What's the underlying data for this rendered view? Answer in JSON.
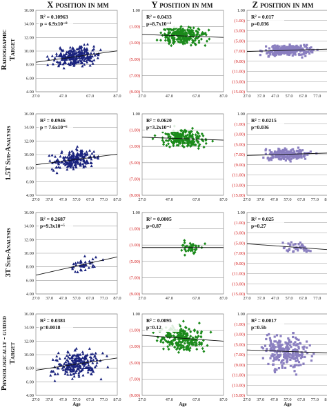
{
  "columns": [
    {
      "title": "X position in mm"
    },
    {
      "title": "Y position in mm"
    },
    {
      "title": "Z position in mm"
    }
  ],
  "rows": [
    {
      "title_lines": [
        "Radiographic",
        "Target"
      ]
    },
    {
      "title_lines": [
        "1.5T Sub-Analysis"
      ]
    },
    {
      "title_lines": [
        "3T Sub-Analysis"
      ]
    },
    {
      "title_lines": [
        "Physiologically - guided",
        "Target"
      ]
    }
  ],
  "chart_data": [
    {
      "type": "scatter",
      "row": 0,
      "col": 0,
      "series": [
        {
          "color": "#1a237e",
          "marker": "triangle",
          "n": 240,
          "slope": 0.028,
          "intercept": 9.0,
          "spread": 0.9
        }
      ],
      "yticks": [
        "4.00",
        "6.00",
        "8.00",
        "10.00",
        "12.00",
        "14.00",
        "16.00"
      ],
      "yrange": [
        4,
        16
      ],
      "xticks": [
        "27.0",
        "47.0",
        "67.0",
        "87.0"
      ],
      "xrange": [
        27,
        87
      ],
      "xdata": [
        33,
        80
      ],
      "annotation": {
        "r2": "R² = 0.10963",
        "p": "p = 6.9x10⁻⁸"
      }
    },
    {
      "type": "scatter",
      "row": 0,
      "col": 1,
      "series": [
        {
          "color": "#1b8a1b",
          "marker": "diamond",
          "n": 240,
          "slope": -0.006,
          "intercept": -2.1,
          "spread": 0.75
        }
      ],
      "yticks": [
        "1.00",
        "(1.00)",
        "(3.00)",
        "(5.00)",
        "(7.00)",
        "(9.00)"
      ],
      "yrange": [
        -9,
        1
      ],
      "xticks": [
        "27.0",
        "47.0",
        "67.0",
        "87.0"
      ],
      "xrange": [
        27,
        87
      ],
      "xdata": [
        33,
        80
      ],
      "annotation": {
        "r2": "R² = 0.0433",
        "p": "p=8.7x10⁻⁴"
      }
    },
    {
      "type": "scatter",
      "row": 0,
      "col": 2,
      "series": [
        {
          "color": "#8a7fc0",
          "marker": "square",
          "n": 240,
          "slope": 0.008,
          "intercept": -6.9,
          "spread": 0.8
        }
      ],
      "yticks": [
        "1.00",
        "(1.00)",
        "(3.00)",
        "(5.00)",
        "(7.00)",
        "(9.00)",
        "(11.00)",
        "(13.00)",
        "(15.00)"
      ],
      "yrange": [
        -15,
        1
      ],
      "xticks": [
        "27.0",
        "37.0",
        "47.0",
        "57.0",
        "67.0",
        "77.0"
      ],
      "xrange": [
        27,
        85
      ],
      "xdata": [
        33,
        80
      ],
      "annotation": {
        "r2": "R² = 0.017",
        "p": "p=0.036"
      }
    },
    {
      "type": "scatter",
      "row": 1,
      "col": 0,
      "series": [
        {
          "color": "#1a237e",
          "marker": "triangle",
          "n": 200,
          "slope": 0.026,
          "intercept": 9.1,
          "spread": 0.9
        }
      ],
      "yticks": [
        "4.00",
        "6.00",
        "8.00",
        "10.00",
        "12.00",
        "14.00",
        "16.00"
      ],
      "yrange": [
        4,
        16
      ],
      "xticks": [
        "27.0",
        "37.0",
        "47.0",
        "57.0",
        "67.0",
        "77.0",
        "87.0"
      ],
      "xrange": [
        27,
        87
      ],
      "xdata": [
        33,
        80
      ],
      "annotation": {
        "r2": "R² = 0.0946",
        "p": "p = 7.6x10⁻⁶"
      }
    },
    {
      "type": "scatter",
      "row": 1,
      "col": 1,
      "series": [
        {
          "color": "#1b8a1b",
          "marker": "diamond",
          "n": 200,
          "slope": -0.006,
          "intercept": -2.0,
          "spread": 0.75
        }
      ],
      "yticks": [
        "1.00",
        "(1.00)",
        "(3.00)",
        "(5.00)",
        "(7.00)",
        "(9.00)"
      ],
      "yrange": [
        -9,
        1
      ],
      "xticks": [
        "27.0",
        "47.0",
        "67.0",
        "87.0"
      ],
      "xrange": [
        27,
        87
      ],
      "xdata": [
        33,
        80
      ],
      "annotation": {
        "r2": "R² = 0.0620",
        "p": "p=3.2x10⁻⁴"
      }
    },
    {
      "type": "scatter",
      "row": 1,
      "col": 2,
      "series": [
        {
          "color": "#8a7fc0",
          "marker": "square",
          "n": 200,
          "slope": 0.008,
          "intercept": -7.0,
          "spread": 0.8
        }
      ],
      "yticks": [
        "1.00",
        "(1.00)",
        "(3.00)",
        "(5.00)",
        "(7.00)",
        "(9.00)",
        "(11.00)",
        "(13.00)",
        "(15.00)"
      ],
      "yrange": [
        -15,
        1
      ],
      "xticks": [
        "27.0",
        "37.0",
        "47.0",
        "57.0",
        "67.0",
        "77.0",
        "87.0"
      ],
      "xrange": [
        27,
        87
      ],
      "xdata": [
        33,
        80
      ],
      "annotation": {
        "r2": "R² = 0.0215",
        "p": "p=0.036"
      }
    },
    {
      "type": "scatter",
      "row": 2,
      "col": 0,
      "series": [
        {
          "color": "#1a237e",
          "marker": "triangle",
          "n": 40,
          "slope": 0.045,
          "intercept": 7.8,
          "spread": 0.7
        }
      ],
      "yticks": [
        "4.00",
        "6.00",
        "8.00",
        "10.00",
        "12.00",
        "14.00",
        "16.00"
      ],
      "yrange": [
        4,
        16
      ],
      "xticks": [
        "27.0",
        "37.0",
        "47.0",
        "57.0",
        "67.0",
        "77.0",
        "87.0"
      ],
      "xrange": [
        27,
        87
      ],
      "xdata": [
        48,
        78
      ],
      "annotation": {
        "r2": "R² = 0.2687",
        "p": "p=9.3x10⁻⁵"
      }
    },
    {
      "type": "scatter",
      "row": 2,
      "col": 1,
      "series": [
        {
          "color": "#1b8a1b",
          "marker": "diamond",
          "n": 40,
          "slope": 0.0,
          "intercept": -3.3,
          "spread": 0.6
        }
      ],
      "yticks": [
        "1.00",
        "(1.00)",
        "(3.00)",
        "(5.00)",
        "(7.00)",
        "(9.00)"
      ],
      "yrange": [
        -9,
        1
      ],
      "xticks": [
        "27.0",
        "47.0",
        "67.0",
        "87.0"
      ],
      "xrange": [
        27,
        87
      ],
      "xdata": [
        48,
        78
      ],
      "annotation": {
        "r2": "R² = 0.0005",
        "p": "p=0.87"
      }
    },
    {
      "type": "scatter",
      "row": 2,
      "col": 2,
      "series": [
        {
          "color": "#8a7fc0",
          "marker": "square",
          "n": 40,
          "slope": -0.02,
          "intercept": -5.6,
          "spread": 0.7
        }
      ],
      "yticks": [
        "1.00",
        "(1.00)",
        "(3.00)",
        "(5.00)",
        "(7.00)",
        "(9.00)",
        "(11.00)",
        "(13.00)",
        "(15.00)"
      ],
      "yrange": [
        -15,
        1
      ],
      "xticks": [
        "27.0",
        "37.0",
        "47.0",
        "57.0",
        "67.0",
        "77.0"
      ],
      "xrange": [
        27,
        85
      ],
      "xdata": [
        48,
        78
      ],
      "annotation": {
        "r2": "R² = 0.025",
        "p": "p=0.27"
      }
    },
    {
      "type": "scatter",
      "row": 3,
      "col": 0,
      "series": [
        {
          "color": "#1a237e",
          "marker": "triangle",
          "n": 230,
          "slope": 0.03,
          "intercept": 8.4,
          "spread": 1.3
        }
      ],
      "yticks": [
        "4.00",
        "6.00",
        "8.00",
        "10.00",
        "12.00",
        "14.00",
        "16.00"
      ],
      "yrange": [
        4,
        16
      ],
      "xticks": [
        "27.0",
        "37.0",
        "47.0",
        "57.0",
        "67.0",
        "77.0",
        "87.0"
      ],
      "xrange": [
        27,
        87
      ],
      "xdata": [
        33,
        80
      ],
      "xlabel": "Age",
      "annotation": {
        "r2": "R² = 0.0381",
        "p": "p=0.0018"
      }
    },
    {
      "type": "scatter",
      "row": 3,
      "col": 1,
      "series": [
        {
          "color": "#1b8a1b",
          "marker": "diamond",
          "n": 230,
          "slope": -0.012,
          "intercept": -1.9,
          "spread": 1.1
        }
      ],
      "yticks": [
        "1.00",
        "(1.00)",
        "(3.00)",
        "(5.00)",
        "(7.00)",
        "(9.00)"
      ],
      "yrange": [
        -9,
        1
      ],
      "xticks": [
        "27.0",
        "47.0",
        "67.0",
        "87.0"
      ],
      "xrange": [
        27,
        87
      ],
      "xdata": [
        33,
        80
      ],
      "xlabel": "Age",
      "annotation": {
        "r2": "R² = 0.0095",
        "p": "p=0.12"
      }
    },
    {
      "type": "scatter",
      "row": 3,
      "col": 2,
      "series": [
        {
          "color": "#8a7fc0",
          "marker": "square",
          "n": 230,
          "slope": -0.01,
          "intercept": -6.3,
          "spread": 2.3
        }
      ],
      "yticks": [
        "1.00",
        "(1.00)",
        "(3.00)",
        "(5.00)",
        "(7.00)",
        "(9.00)",
        "(11.00)",
        "(13.00)",
        "(15.00)"
      ],
      "yrange": [
        -15,
        1
      ],
      "xticks": [
        "27.0",
        "37.0",
        "47.0",
        "57.0",
        "67.0",
        "77.0",
        "87.0"
      ],
      "xrange": [
        27,
        87
      ],
      "xdata": [
        33,
        80
      ],
      "xlabel": "Age",
      "annotation": {
        "r2": "R² = 0.0017",
        "p": "p=0.5b"
      }
    }
  ]
}
